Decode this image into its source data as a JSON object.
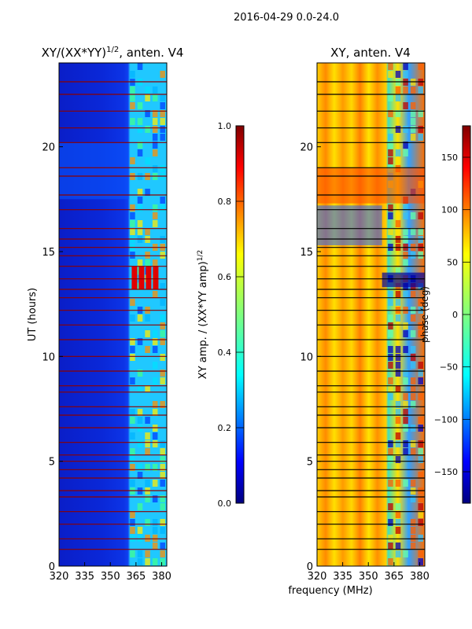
{
  "figure": {
    "suptitle": "2016-04-29 0.0-24.0",
    "shared_xlabel": "frequency (MHz)"
  },
  "chart_data": [
    {
      "type": "heatmap",
      "id": "amp",
      "title_main": "XY/(XX*YY)",
      "title_sup": "1/2",
      "title_tail": ", anten. V4",
      "ylabel": "UT (hours)",
      "xlim": [
        320,
        383
      ],
      "ylim": [
        0,
        24
      ],
      "xticks": [
        320,
        335,
        350,
        365,
        380
      ],
      "yticks": [
        0,
        5,
        10,
        15,
        20
      ],
      "colormap": "jet",
      "colorbar": {
        "label_main": "XY amp. / (XX*YY amp)",
        "label_sup": "1/2",
        "vmin": 0.0,
        "vmax": 1.0,
        "ticks": [
          "0.0",
          "0.2",
          "0.4",
          "0.6",
          "0.8",
          "1.0"
        ],
        "tick_values": [
          0.0,
          0.2,
          0.4,
          0.6,
          0.8,
          1.0
        ]
      },
      "flagged_rows_hours": [
        0.8,
        1.3,
        2.0,
        2.6,
        3.3,
        3.6,
        4.2,
        4.6,
        5.0,
        5.3,
        5.9,
        6.6,
        7.2,
        7.6,
        8.3,
        8.6,
        9.3,
        10.0,
        10.8,
        11.5,
        12.2,
        12.8,
        13.2,
        13.7,
        14.3,
        14.8,
        15.2,
        15.6,
        16.1,
        17.0,
        17.7,
        18.6,
        19.0,
        20.2,
        20.9,
        21.7,
        22.5,
        23.1
      ]
    },
    {
      "type": "heatmap",
      "id": "phase",
      "title": "XY, anten. V4",
      "xlim": [
        320,
        383
      ],
      "ylim": [
        0,
        24
      ],
      "xticks": [
        320,
        335,
        350,
        365,
        380
      ],
      "yticks": [
        0,
        5,
        10,
        15,
        20
      ],
      "colormap": "jet",
      "colorbar": {
        "label": "phase (deg)",
        "vmin": -180,
        "vmax": 180,
        "ticks": [
          "−150",
          "−100",
          "−50",
          "0",
          "50",
          "100",
          "150"
        ],
        "tick_values": [
          -150,
          -100,
          -50,
          0,
          50,
          100,
          150
        ]
      },
      "flagged_rows_hours": [
        0.8,
        1.3,
        2.0,
        2.6,
        3.3,
        3.6,
        4.2,
        4.6,
        5.0,
        5.3,
        5.9,
        6.6,
        7.2,
        7.6,
        8.3,
        8.6,
        9.3,
        10.0,
        10.8,
        11.5,
        12.2,
        12.8,
        13.2,
        13.7,
        14.3,
        14.8,
        15.2,
        15.6,
        16.1,
        17.0,
        17.7,
        18.6,
        19.0,
        20.2,
        20.9,
        21.7,
        22.5,
        23.1
      ]
    }
  ]
}
